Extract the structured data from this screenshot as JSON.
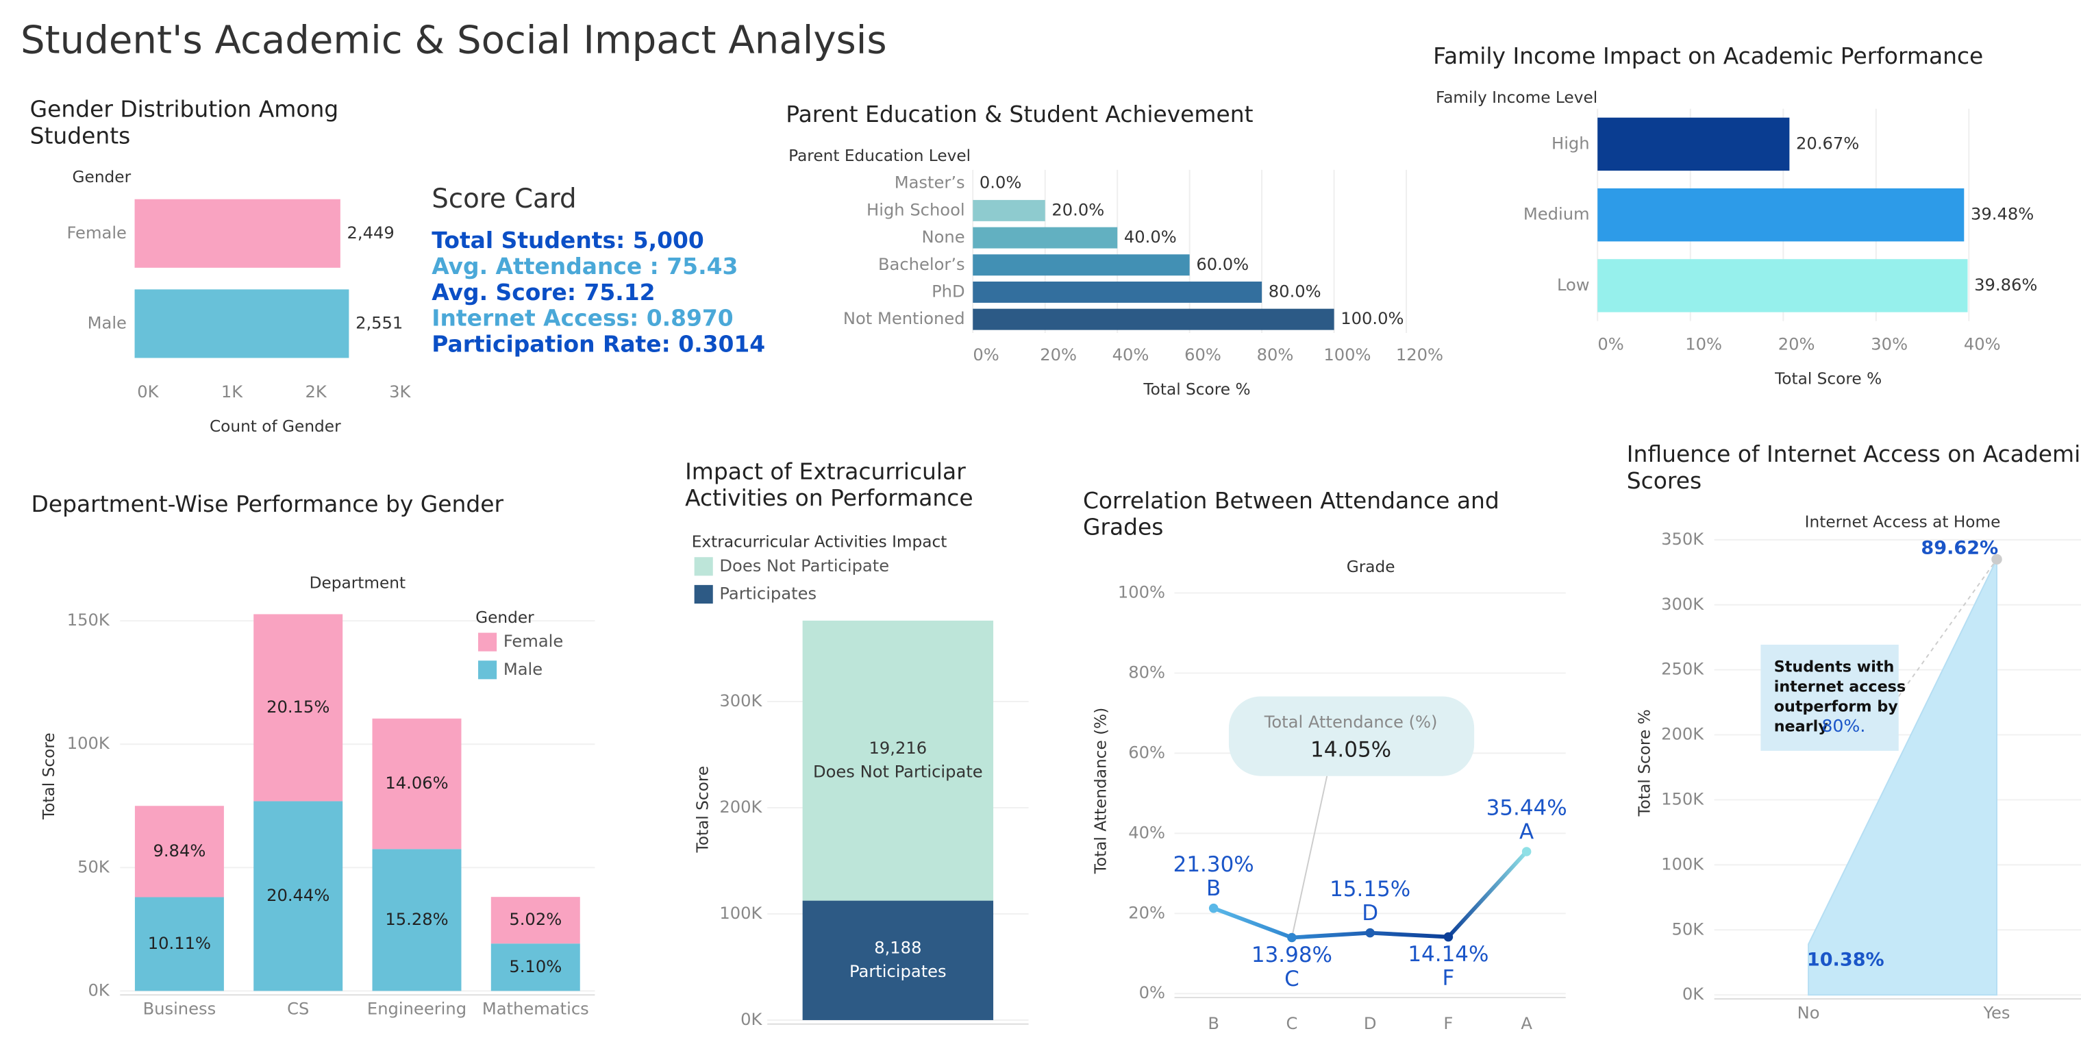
{
  "title": "Student's Academic & Social Impact Analysis",
  "score_card": {
    "title": "Score Card",
    "items": [
      {
        "text": "Total Students: 5,000",
        "color": "#0b4fc6"
      },
      {
        "text": "Avg. Attendance : 75.43",
        "color": "#4aa8d8"
      },
      {
        "text": "Avg. Score: 75.12",
        "color": "#0b4fc6"
      },
      {
        "text": "Internet Access: 0.8970",
        "color": "#4aa8d8"
      },
      {
        "text": "Participation Rate: 0.3014",
        "color": "#0b4fc6"
      }
    ]
  },
  "chart_data": [
    {
      "type": "bar",
      "orientation": "horizontal",
      "title": "Gender Distribution Among Students",
      "y_label": "Gender",
      "x_label": "Count of Gender",
      "categories": [
        "Female",
        "Male"
      ],
      "values": [
        2449,
        2551
      ],
      "value_labels": [
        "2,449",
        "2,551"
      ],
      "colors": [
        "#f9a3c1",
        "#68c1d9"
      ],
      "xlim": [
        0,
        3300
      ],
      "xticks": [
        {
          "value": 0,
          "label": "0K"
        },
        {
          "value": 1000,
          "label": "1K"
        },
        {
          "value": 2000,
          "label": "2K"
        },
        {
          "value": 3000,
          "label": "3K"
        }
      ],
      "grid": false
    },
    {
      "type": "bar",
      "orientation": "horizontal",
      "title": "Parent Education & Student Achievement",
      "y_label": "Parent Education Level",
      "x_label": "Total Score %",
      "categories": [
        "Master’s",
        "High School",
        "None",
        "Bachelor’s",
        "PhD",
        "Not Mentioned"
      ],
      "values": [
        0,
        20,
        40,
        60,
        80,
        100
      ],
      "value_labels": [
        "0.0%",
        "20.0%",
        "40.0%",
        "60.0%",
        "80.0%",
        "100.0%"
      ],
      "colors": [
        "#b7e0e0",
        "#8ecbcf",
        "#62b0c1",
        "#4290b4",
        "#336f9e",
        "#2c5a86"
      ],
      "xlim": [
        0,
        123
      ],
      "xticks": [
        {
          "value": 0,
          "label": "0%"
        },
        {
          "value": 20,
          "label": "20%"
        },
        {
          "value": 40,
          "label": "40%"
        },
        {
          "value": 60,
          "label": "60%"
        },
        {
          "value": 80,
          "label": "80%"
        },
        {
          "value": 100,
          "label": "100%"
        },
        {
          "value": 120,
          "label": "120%"
        }
      ],
      "grid": true
    },
    {
      "type": "bar",
      "orientation": "horizontal",
      "title": "Family Income Impact on Academic Performance",
      "y_label": "Family Income Level",
      "x_label": "Total Score %",
      "categories": [
        "High",
        "Medium",
        "Low"
      ],
      "values": [
        20.67,
        39.48,
        39.86
      ],
      "value_labels": [
        "20.67%",
        "39.48%",
        "39.86%"
      ],
      "colors": [
        "#0a3d91",
        "#2d9be8",
        "#96f0ec"
      ],
      "xlim": [
        0,
        49
      ],
      "xticks": [
        {
          "value": 0,
          "label": "0%"
        },
        {
          "value": 10,
          "label": "10%"
        },
        {
          "value": 20,
          "label": "20%"
        },
        {
          "value": 30,
          "label": "30%"
        },
        {
          "value": 40,
          "label": "40%"
        }
      ],
      "grid": true
    },
    {
      "type": "bar",
      "stacked": true,
      "title": "Department-Wise Performance by Gender",
      "x_label": "Department",
      "y_label": "Total Score",
      "legend_title": "Gender",
      "legend": "top-right",
      "categories": [
        "Business",
        "CS",
        "Engineering",
        "Mathematics"
      ],
      "series": [
        {
          "name": "Male",
          "color": "#68c1d9",
          "label_color": "#222",
          "values": [
            38000,
            76900,
            57500,
            19200
          ],
          "labels": [
            "10.11%",
            "20.44%",
            "15.28%",
            "5.10%"
          ]
        },
        {
          "name": "Female",
          "color": "#f9a3c1",
          "label_color": "#222",
          "values": [
            37000,
            75800,
            52900,
            18900
          ],
          "labels": [
            "9.84%",
            "20.15%",
            "14.06%",
            "5.02%"
          ]
        }
      ],
      "ylim": [
        0,
        157000
      ],
      "yticks": [
        {
          "value": 0,
          "label": "0K"
        },
        {
          "value": 50000,
          "label": "50K"
        },
        {
          "value": 100000,
          "label": "100K"
        },
        {
          "value": 150000,
          "label": "150K"
        }
      ],
      "grid": true
    },
    {
      "type": "bar",
      "stacked": true,
      "title": "Impact of Extracurricular Activities on Performance",
      "y_label": "Total Score",
      "legend_title": "Extracurricular Activities Impact",
      "legend": "top-left",
      "label_series_name": true,
      "categories": [
        null
      ],
      "series": [
        {
          "name": "Participates",
          "color": "#2d5a85",
          "label_color": "#ffffff",
          "values": [
            112500
          ],
          "labels": [
            "8,188"
          ]
        },
        {
          "name": "Does Not Participate",
          "color": "#bde5d9",
          "label_color": "#333",
          "values": [
            263700
          ],
          "labels": [
            "19,216"
          ]
        }
      ],
      "ylim": [
        0,
        386000
      ],
      "yticks": [
        {
          "value": 0,
          "label": "0K"
        },
        {
          "value": 100000,
          "label": "100K"
        },
        {
          "value": 200000,
          "label": "200K"
        },
        {
          "value": 300000,
          "label": "300K"
        }
      ],
      "grid": true
    },
    {
      "type": "line",
      "title": "Correlation Between Attendance and Grades",
      "x_label": "Grade",
      "y_label": "Total Attendance (%)",
      "categories": [
        "B",
        "C",
        "D",
        "F",
        "A"
      ],
      "values": [
        21.3,
        13.98,
        15.15,
        14.14,
        35.44
      ],
      "value_labels": [
        "21.30%",
        "13.98%",
        "15.15%",
        "14.14%",
        "35.44%"
      ],
      "point_colors": [
        "#5ab8e8",
        "#2f86d0",
        "#1f5fb3",
        "#0c3f98",
        "#8fe0e6"
      ],
      "label_color": "#1a55c8",
      "annotation": {
        "label": "Total Attendance (%)",
        "value_label": "14.05%"
      },
      "ylim": [
        0,
        100
      ],
      "yticks": [
        {
          "value": 0,
          "label": "0%"
        },
        {
          "value": 20,
          "label": "20%"
        },
        {
          "value": 40,
          "label": "40%"
        },
        {
          "value": 60,
          "label": "60%"
        },
        {
          "value": 80,
          "label": "80%"
        },
        {
          "value": 100,
          "label": "100%"
        }
      ],
      "grid": true
    },
    {
      "type": "area",
      "title": "Influence of Internet Access on Academic Scores",
      "x_label": "Internet Access at Home",
      "y_label": "Total Score %",
      "categories": [
        "No",
        "Yes"
      ],
      "values": [
        39000,
        335000
      ],
      "labels": [
        "10.38%",
        "89.62%"
      ],
      "color": "#c5e8f8",
      "label_color": "#1a55c8",
      "annotation": {
        "lines": [
          "Students with",
          "internet access",
          "outperform by",
          "nearly"
        ],
        "highlight": "80%."
      },
      "ylim": [
        0,
        355000
      ],
      "yticks": [
        {
          "value": 0,
          "label": "0K"
        },
        {
          "value": 50000,
          "label": "50K"
        },
        {
          "value": 100000,
          "label": "100K"
        },
        {
          "value": 150000,
          "label": "150K"
        },
        {
          "value": 200000,
          "label": "200K"
        },
        {
          "value": 250000,
          "label": "250K"
        },
        {
          "value": 300000,
          "label": "300K"
        },
        {
          "value": 350000,
          "label": "350K"
        }
      ],
      "grid": true
    }
  ]
}
